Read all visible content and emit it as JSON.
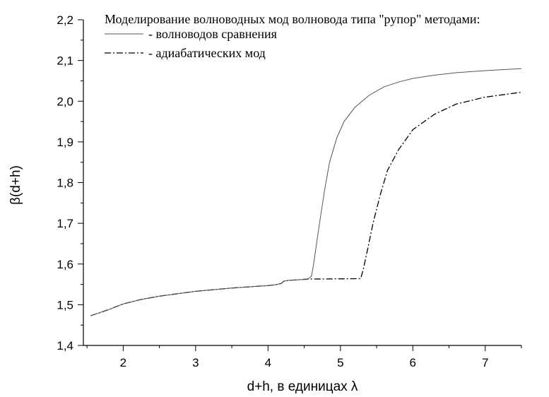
{
  "chart_data": {
    "type": "line",
    "xlabel": "d+h, в единицах λ",
    "ylabel": "β(d+h)",
    "xlim": [
      1.45,
      7.5
    ],
    "ylim": [
      1.4,
      2.2
    ],
    "x_ticks": [
      2,
      3,
      4,
      5,
      6,
      7
    ],
    "x_minor_step": 0.5,
    "y_ticks": [
      1.4,
      1.5,
      1.6,
      1.7,
      1.8,
      1.9,
      2.0,
      2.1,
      2.2
    ],
    "x_tick_labels": [
      "2",
      "3",
      "4",
      "5",
      "6",
      "7"
    ],
    "y_tick_labels": [
      "1,4",
      "1,5",
      "1,6",
      "1,7",
      "1,8",
      "1,9",
      "2,0",
      "2,1",
      "2,2"
    ],
    "legend": {
      "title": "Моделирование волноводных мод волновода типа \"рупор\" методами:",
      "placement": "top"
    },
    "series": [
      {
        "name": "- волноводов сравнения",
        "style": "solid",
        "color": "#555555",
        "points": [
          [
            1.55,
            1.473
          ],
          [
            1.8,
            1.488
          ],
          [
            2.0,
            1.502
          ],
          [
            2.25,
            1.513
          ],
          [
            2.5,
            1.521
          ],
          [
            2.75,
            1.527
          ],
          [
            3.0,
            1.533
          ],
          [
            3.25,
            1.537
          ],
          [
            3.5,
            1.541
          ],
          [
            3.75,
            1.544
          ],
          [
            4.0,
            1.547
          ],
          [
            4.1,
            1.549
          ],
          [
            4.18,
            1.552
          ],
          [
            4.22,
            1.558
          ],
          [
            4.3,
            1.56
          ],
          [
            4.4,
            1.561
          ],
          [
            4.55,
            1.563
          ],
          [
            4.6,
            1.57
          ],
          [
            4.63,
            1.6
          ],
          [
            4.67,
            1.65
          ],
          [
            4.72,
            1.71
          ],
          [
            4.78,
            1.78
          ],
          [
            4.85,
            1.85
          ],
          [
            4.95,
            1.91
          ],
          [
            5.05,
            1.95
          ],
          [
            5.2,
            1.985
          ],
          [
            5.4,
            2.015
          ],
          [
            5.6,
            2.035
          ],
          [
            5.8,
            2.047
          ],
          [
            6.0,
            2.056
          ],
          [
            6.3,
            2.064
          ],
          [
            6.6,
            2.07
          ],
          [
            7.0,
            2.075
          ],
          [
            7.5,
            2.08
          ]
        ]
      },
      {
        "name": "- адиабатических мод",
        "style": "dashdot",
        "color": "#000000",
        "points": [
          [
            1.55,
            1.473
          ],
          [
            1.8,
            1.488
          ],
          [
            2.0,
            1.502
          ],
          [
            2.25,
            1.513
          ],
          [
            2.5,
            1.521
          ],
          [
            2.75,
            1.527
          ],
          [
            3.0,
            1.533
          ],
          [
            3.25,
            1.537
          ],
          [
            3.5,
            1.541
          ],
          [
            3.75,
            1.544
          ],
          [
            4.0,
            1.547
          ],
          [
            4.1,
            1.549
          ],
          [
            4.18,
            1.552
          ],
          [
            4.22,
            1.558
          ],
          [
            4.3,
            1.56
          ],
          [
            4.4,
            1.561
          ],
          [
            4.55,
            1.563
          ],
          [
            5.28,
            1.564
          ],
          [
            5.32,
            1.59
          ],
          [
            5.38,
            1.64
          ],
          [
            5.45,
            1.7
          ],
          [
            5.55,
            1.77
          ],
          [
            5.65,
            1.83
          ],
          [
            5.8,
            1.88
          ],
          [
            6.0,
            1.93
          ],
          [
            6.3,
            1.968
          ],
          [
            6.6,
            1.993
          ],
          [
            7.0,
            2.01
          ],
          [
            7.5,
            2.022
          ]
        ]
      }
    ]
  }
}
